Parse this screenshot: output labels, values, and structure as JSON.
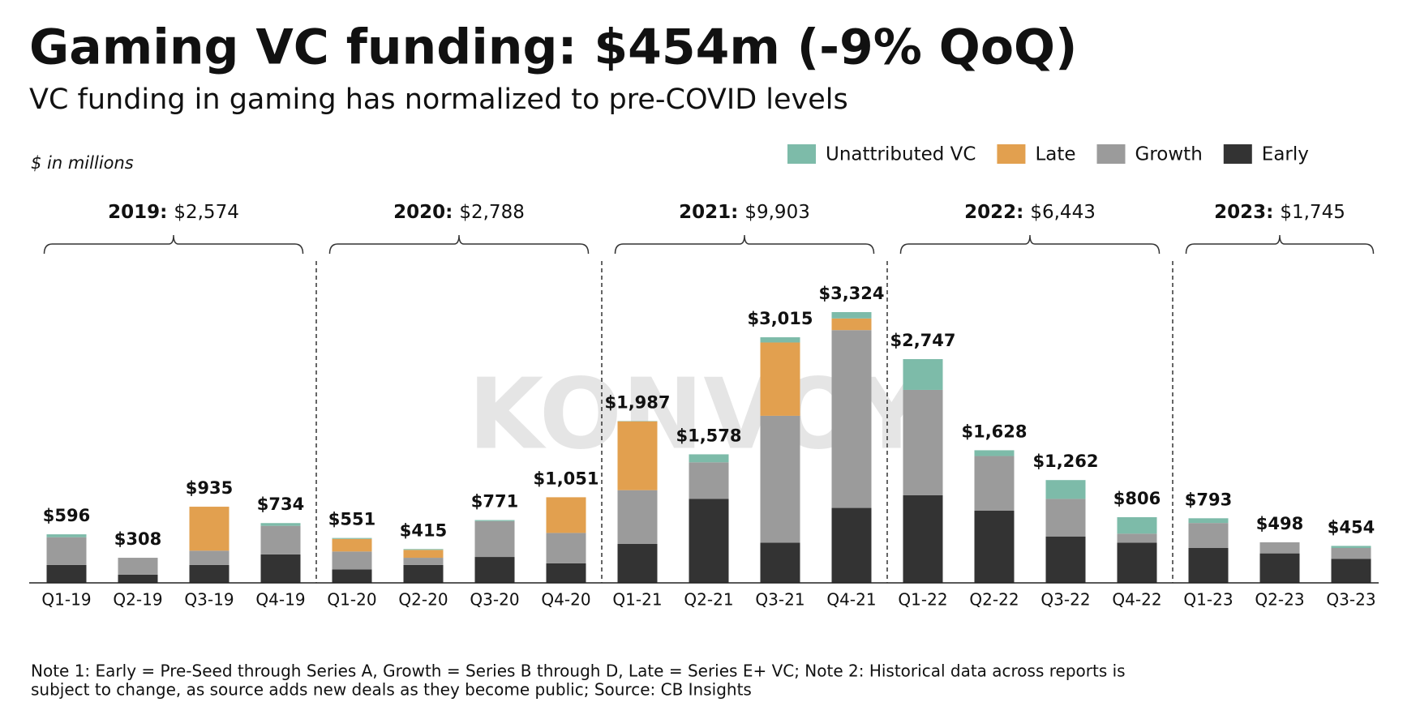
{
  "chart_data": {
    "type": "stacked-bar",
    "title": "Gaming VC funding: $454m (-9% QoQ)",
    "subtitle": "VC funding in gaming has normalized to pre-COVID levels",
    "unit_note": "$ in millions",
    "watermark": "KONVOY",
    "categories": [
      "Q1-19",
      "Q2-19",
      "Q3-19",
      "Q4-19",
      "Q1-20",
      "Q2-20",
      "Q3-20",
      "Q4-20",
      "Q1-21",
      "Q2-21",
      "Q3-21",
      "Q4-21",
      "Q1-22",
      "Q2-22",
      "Q3-22",
      "Q4-22",
      "Q1-23",
      "Q2-23",
      "Q3-23"
    ],
    "series": [
      {
        "name": "Early",
        "color": "#333333",
        "values": [
          220,
          100,
          220,
          350,
          165,
          220,
          318,
          240,
          480,
          1030,
          494,
          920,
          1075,
          888,
          570,
          494,
          428,
          362,
          296
        ]
      },
      {
        "name": "Growth",
        "color": "#9b9b9b",
        "values": [
          340,
          208,
          175,
          350,
          220,
          88,
          440,
          373,
          658,
          450,
          1557,
          2183,
          1294,
          669,
          461,
          110,
          307,
          136,
          132
        ]
      },
      {
        "name": "Late",
        "color": "#e2a04f",
        "values": [
          0,
          0,
          540,
          0,
          155,
          97,
          0,
          438,
          845,
          0,
          900,
          143,
          0,
          0,
          0,
          0,
          0,
          0,
          0
        ]
      },
      {
        "name": "Unattributed VC",
        "color": "#7dbba9",
        "values": [
          36,
          0,
          0,
          34,
          11,
          10,
          13,
          0,
          4,
          98,
          64,
          78,
          378,
          71,
          231,
          202,
          58,
          0,
          26
        ]
      }
    ],
    "totals": [
      596,
      308,
      935,
      734,
      551,
      415,
      771,
      1051,
      1987,
      1578,
      3015,
      3324,
      2747,
      1628,
      1262,
      806,
      793,
      498,
      454
    ],
    "total_labels": [
      "$596",
      "$308",
      "$935",
      "$734",
      "$551",
      "$415",
      "$771",
      "$1,051",
      "$1,987",
      "$1,578",
      "$3,015",
      "$3,324",
      "$2,747",
      "$1,628",
      "$1,262",
      "$806",
      "$793",
      "$498",
      "$454"
    ],
    "groups": [
      {
        "year": "2019:",
        "total": "$2,574"
      },
      {
        "year": "2020:",
        "total": "$2,788"
      },
      {
        "year": "2021:",
        "total": "$9,903"
      },
      {
        "year": "2022:",
        "total": "$6,443"
      },
      {
        "year": "2023:",
        "total": "$1,745"
      }
    ],
    "note": "Note 1: Early = Pre-Seed through Series A, Growth = Series B through D, Late = Series E+ VC; Note 2: Historical data across reports is",
    "note_line2": "subject to change, as source adds new deals as they become public; Source: CB Insights"
  }
}
